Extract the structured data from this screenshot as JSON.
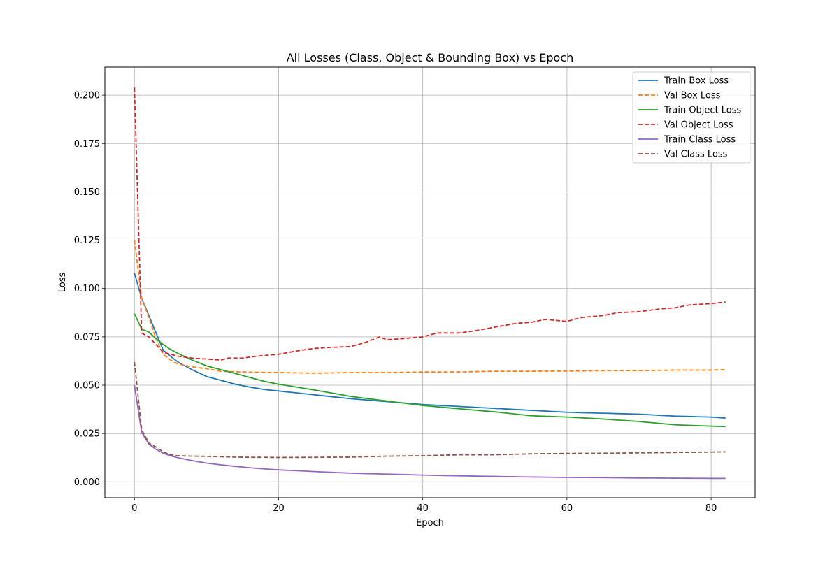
{
  "chart_data": {
    "type": "line",
    "title": "All Losses (Class, Object & Bounding Box) vs Epoch",
    "xlabel": "Epoch",
    "ylabel": "Loss",
    "xlim": [
      -4.1,
      86.1
    ],
    "ylim": [
      -0.0082,
      0.2145
    ],
    "xticks": [
      0,
      20,
      40,
      60,
      80
    ],
    "yticks": [
      0.0,
      0.025,
      0.05,
      0.075,
      0.1,
      0.125,
      0.15,
      0.175,
      0.2
    ],
    "xtick_labels": [
      "0",
      "20",
      "40",
      "60",
      "80"
    ],
    "ytick_labels": [
      "0.000",
      "0.025",
      "0.050",
      "0.075",
      "0.100",
      "0.125",
      "0.150",
      "0.175",
      "0.200"
    ],
    "grid": true,
    "legend_position": "top-right",
    "x_start": 0,
    "x_end": 82,
    "series": [
      {
        "name": "Train Box Loss",
        "color": "#1f77b4",
        "style": "solid",
        "anchors": [
          [
            0,
            0.108
          ],
          [
            1,
            0.095
          ],
          [
            2,
            0.086
          ],
          [
            3,
            0.077
          ],
          [
            4,
            0.068
          ],
          [
            5,
            0.065
          ],
          [
            6,
            0.062
          ],
          [
            8,
            0.058
          ],
          [
            10,
            0.0545
          ],
          [
            12,
            0.0525
          ],
          [
            14,
            0.0505
          ],
          [
            16,
            0.049
          ],
          [
            18,
            0.0478
          ],
          [
            20,
            0.047
          ],
          [
            25,
            0.045
          ],
          [
            30,
            0.043
          ],
          [
            35,
            0.0415
          ],
          [
            40,
            0.04
          ],
          [
            45,
            0.039
          ],
          [
            50,
            0.038
          ],
          [
            55,
            0.037
          ],
          [
            60,
            0.036
          ],
          [
            65,
            0.0355
          ],
          [
            70,
            0.035
          ],
          [
            75,
            0.034
          ],
          [
            80,
            0.0335
          ],
          [
            82,
            0.033
          ]
        ]
      },
      {
        "name": "Val Box Loss",
        "color": "#ff7f0e",
        "style": "dashed",
        "anchors": [
          [
            0,
            0.125
          ],
          [
            1,
            0.095
          ],
          [
            2,
            0.085
          ],
          [
            3,
            0.074
          ],
          [
            4,
            0.066
          ],
          [
            5,
            0.063
          ],
          [
            6,
            0.061
          ],
          [
            8,
            0.0595
          ],
          [
            10,
            0.0585
          ],
          [
            12,
            0.0572
          ],
          [
            15,
            0.0568
          ],
          [
            20,
            0.0565
          ],
          [
            25,
            0.0562
          ],
          [
            30,
            0.0565
          ],
          [
            35,
            0.0565
          ],
          [
            40,
            0.0568
          ],
          [
            45,
            0.0568
          ],
          [
            50,
            0.0572
          ],
          [
            55,
            0.0572
          ],
          [
            60,
            0.0573
          ],
          [
            65,
            0.0575
          ],
          [
            70,
            0.0575
          ],
          [
            75,
            0.0578
          ],
          [
            80,
            0.0578
          ],
          [
            82,
            0.058
          ]
        ]
      },
      {
        "name": "Train Object Loss",
        "color": "#2ca02c",
        "style": "solid",
        "anchors": [
          [
            0,
            0.087
          ],
          [
            1,
            0.079
          ],
          [
            2,
            0.0775
          ],
          [
            3,
            0.074
          ],
          [
            4,
            0.071
          ],
          [
            5,
            0.0685
          ],
          [
            6,
            0.0665
          ],
          [
            8,
            0.063
          ],
          [
            10,
            0.06
          ],
          [
            12,
            0.058
          ],
          [
            14,
            0.056
          ],
          [
            16,
            0.054
          ],
          [
            18,
            0.052
          ],
          [
            20,
            0.0505
          ],
          [
            25,
            0.0475
          ],
          [
            30,
            0.0442
          ],
          [
            35,
            0.0418
          ],
          [
            40,
            0.0395
          ],
          [
            45,
            0.0378
          ],
          [
            50,
            0.0362
          ],
          [
            55,
            0.0342
          ],
          [
            60,
            0.0335
          ],
          [
            65,
            0.0325
          ],
          [
            70,
            0.0312
          ],
          [
            75,
            0.0295
          ],
          [
            80,
            0.0288
          ],
          [
            82,
            0.0286
          ]
        ]
      },
      {
        "name": "Val Object Loss",
        "color": "#d62728",
        "style": "dashed",
        "anchors": [
          [
            0,
            0.204
          ],
          [
            1,
            0.077
          ],
          [
            2,
            0.075
          ],
          [
            3,
            0.071
          ],
          [
            4,
            0.067
          ],
          [
            5,
            0.066
          ],
          [
            6,
            0.065
          ],
          [
            8,
            0.064
          ],
          [
            10,
            0.0635
          ],
          [
            12,
            0.063
          ],
          [
            13,
            0.064
          ],
          [
            15,
            0.064
          ],
          [
            17,
            0.065
          ],
          [
            20,
            0.066
          ],
          [
            23,
            0.068
          ],
          [
            25,
            0.069
          ],
          [
            27,
            0.0695
          ],
          [
            30,
            0.07
          ],
          [
            32,
            0.072
          ],
          [
            34,
            0.075
          ],
          [
            35,
            0.0735
          ],
          [
            37,
            0.074
          ],
          [
            40,
            0.075
          ],
          [
            42,
            0.077
          ],
          [
            45,
            0.077
          ],
          [
            47,
            0.078
          ],
          [
            50,
            0.08
          ],
          [
            53,
            0.082
          ],
          [
            55,
            0.0825
          ],
          [
            57,
            0.084
          ],
          [
            60,
            0.083
          ],
          [
            62,
            0.085
          ],
          [
            65,
            0.086
          ],
          [
            67,
            0.0875
          ],
          [
            70,
            0.088
          ],
          [
            73,
            0.0895
          ],
          [
            75,
            0.09
          ],
          [
            77,
            0.0915
          ],
          [
            80,
            0.0922
          ],
          [
            82,
            0.093
          ]
        ]
      },
      {
        "name": "Train Class Loss",
        "color": "#9467bd",
        "style": "solid",
        "anchors": [
          [
            0,
            0.05
          ],
          [
            1,
            0.0255
          ],
          [
            2,
            0.0195
          ],
          [
            3,
            0.0168
          ],
          [
            4,
            0.0148
          ],
          [
            5,
            0.0135
          ],
          [
            6,
            0.0125
          ],
          [
            8,
            0.011
          ],
          [
            10,
            0.0097
          ],
          [
            12,
            0.0088
          ],
          [
            14,
            0.008
          ],
          [
            16,
            0.0073
          ],
          [
            18,
            0.0067
          ],
          [
            20,
            0.0062
          ],
          [
            25,
            0.0053
          ],
          [
            30,
            0.0045
          ],
          [
            35,
            0.004
          ],
          [
            40,
            0.0035
          ],
          [
            45,
            0.0031
          ],
          [
            50,
            0.0028
          ],
          [
            55,
            0.0025
          ],
          [
            60,
            0.0023
          ],
          [
            65,
            0.0022
          ],
          [
            70,
            0.002
          ],
          [
            75,
            0.0019
          ],
          [
            80,
            0.0018
          ],
          [
            82,
            0.0018
          ]
        ]
      },
      {
        "name": "Val Class Loss",
        "color": "#8c564b",
        "style": "dashed",
        "anchors": [
          [
            0,
            0.062
          ],
          [
            1,
            0.027
          ],
          [
            2,
            0.02
          ],
          [
            3,
            0.018
          ],
          [
            4,
            0.0155
          ],
          [
            5,
            0.014
          ],
          [
            6,
            0.0135
          ],
          [
            8,
            0.0133
          ],
          [
            10,
            0.0132
          ],
          [
            12,
            0.013
          ],
          [
            14,
            0.0128
          ],
          [
            16,
            0.0127
          ],
          [
            18,
            0.0127
          ],
          [
            20,
            0.0126
          ],
          [
            25,
            0.0127
          ],
          [
            30,
            0.0128
          ],
          [
            35,
            0.0133
          ],
          [
            40,
            0.0135
          ],
          [
            45,
            0.014
          ],
          [
            50,
            0.014
          ],
          [
            55,
            0.0145
          ],
          [
            60,
            0.0147
          ],
          [
            65,
            0.0148
          ],
          [
            70,
            0.015
          ],
          [
            75,
            0.0152
          ],
          [
            80,
            0.0154
          ],
          [
            82,
            0.0155
          ]
        ]
      }
    ]
  }
}
